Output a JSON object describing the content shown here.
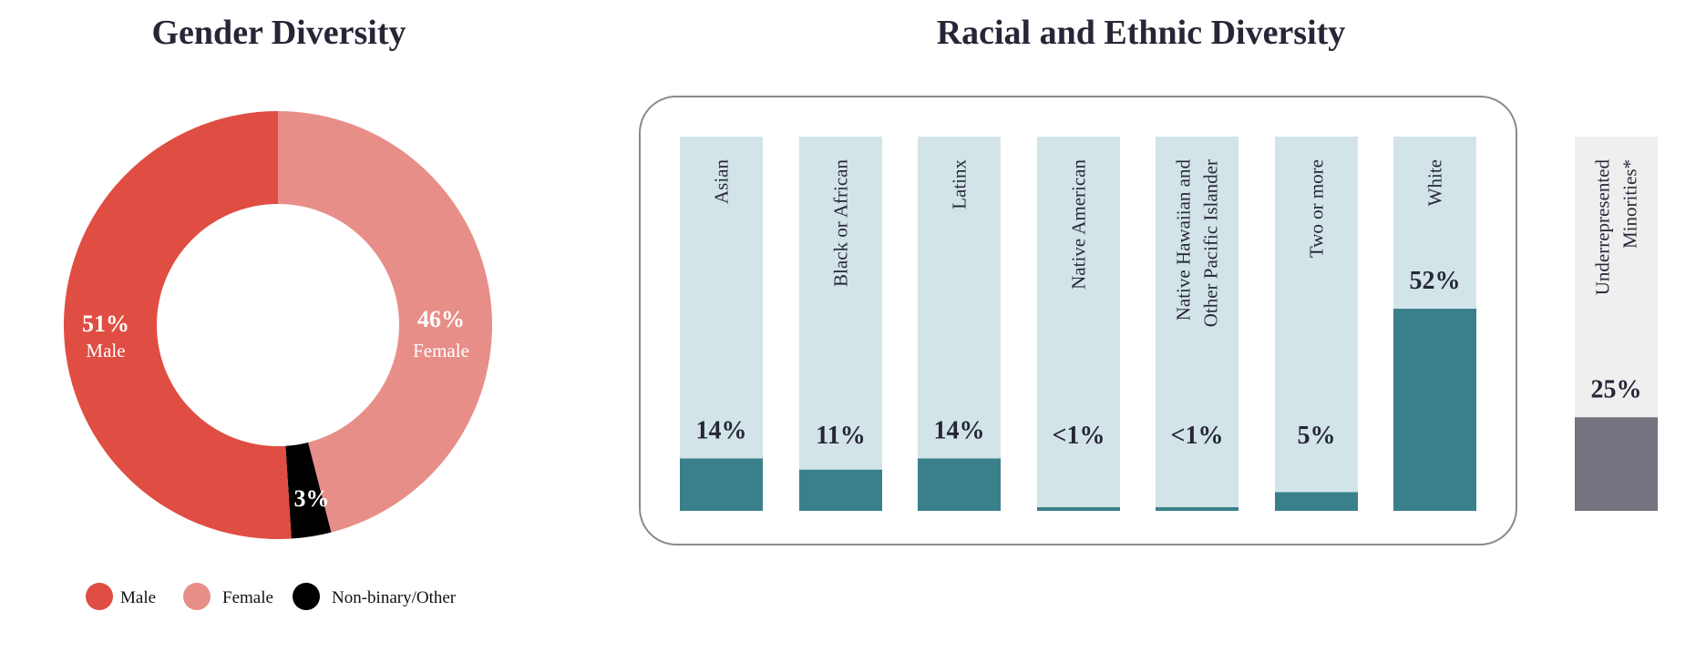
{
  "colors": {
    "male": "#E04D42",
    "female": "#E88E88",
    "nonbinary": "#000000",
    "bar_fill": "#3A808B",
    "bar_track": "#D3E4E9",
    "urm_fill": "#74737F",
    "urm_track": "#EFEFEF",
    "box_border": "#8A8A8A",
    "text_dark": "#262637"
  },
  "gender": {
    "title": "Gender Diversity",
    "segments": [
      {
        "key": "male",
        "pct_label": "51%",
        "label": "Male"
      },
      {
        "key": "female",
        "pct_label": "46%",
        "label": "Female"
      },
      {
        "key": "nonbinary",
        "pct_label": "3%",
        "label": ""
      }
    ],
    "legend": [
      {
        "key": "male",
        "label": "Male"
      },
      {
        "key": "female",
        "label": "Female"
      },
      {
        "key": "nonbinary",
        "label": "Non-binary/Other"
      }
    ]
  },
  "race": {
    "title": "Racial and Ethnic Diversity"
  },
  "chart_data": [
    {
      "type": "pie",
      "title": "Gender Diversity",
      "donut": true,
      "categories": [
        "Male",
        "Female",
        "Non-binary/Other"
      ],
      "values": [
        51,
        46,
        3
      ],
      "labels": [
        "51%",
        "46%",
        "3%"
      ],
      "legend_position": "bottom"
    },
    {
      "type": "bar",
      "title": "Racial and Ethnic Diversity",
      "orientation": "vertical-progress",
      "categories": [
        "Asian",
        "Black or African",
        "Latinx",
        "Native American",
        "Native Hawaiian and Other Pacific Islander",
        "Two or more",
        "White"
      ],
      "category_lines": [
        [
          "Asian"
        ],
        [
          "Black or African"
        ],
        [
          "Latinx"
        ],
        [
          "Native American"
        ],
        [
          "Native Hawaiian and",
          "Other Pacific Islander"
        ],
        [
          "Two or more"
        ],
        [
          "White"
        ]
      ],
      "values": [
        14,
        11,
        14,
        0.5,
        0.5,
        5,
        52
      ],
      "labels": [
        "14%",
        "11%",
        "14%",
        "<1%",
        "<1%",
        "5%",
        "52%"
      ],
      "ylim": [
        0,
        100
      ],
      "grid": false
    },
    {
      "type": "bar",
      "title": "Underrepresented Minorities*",
      "categories": [
        "Underrepresented Minorities*"
      ],
      "category_lines": [
        [
          "Underrepresented",
          "Minorities*"
        ]
      ],
      "values": [
        25
      ],
      "labels": [
        "25%"
      ],
      "ylim": [
        0,
        100
      ]
    }
  ]
}
